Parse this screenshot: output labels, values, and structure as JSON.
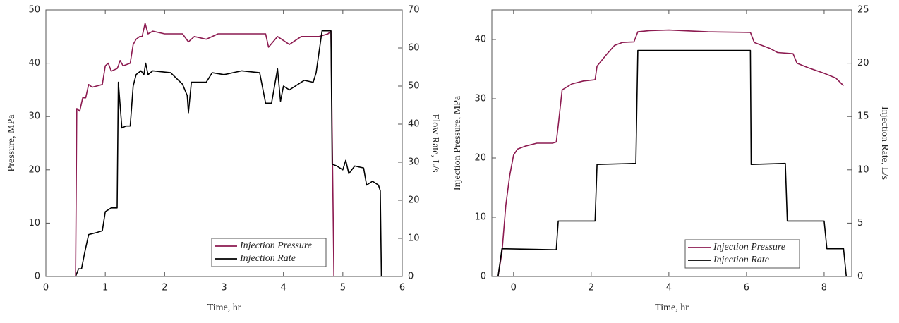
{
  "chart_data": [
    {
      "type": "line",
      "xlabel": "Time, hr",
      "ylabel": "Pressure, MPa",
      "y2label": "Flow Rate, L/s",
      "xlim": [
        0,
        6
      ],
      "xticks": [
        0,
        1,
        2,
        3,
        4,
        5,
        6
      ],
      "ylim": [
        0,
        50
      ],
      "yticks": [
        0,
        10,
        20,
        30,
        40,
        50
      ],
      "y2lim": [
        0,
        70
      ],
      "y2ticks": [
        0,
        10,
        20,
        30,
        40,
        50,
        60,
        70
      ],
      "legend": "lower right",
      "series": [
        {
          "name": "Injection Pressure",
          "color": "#8c1a50",
          "x": [
            0.5,
            0.52,
            0.57,
            0.62,
            0.67,
            0.72,
            0.78,
            0.95,
            1.0,
            1.05,
            1.1,
            1.2,
            1.22,
            1.25,
            1.3,
            1.42,
            1.47,
            1.52,
            1.58,
            1.62,
            1.67,
            1.72,
            1.8,
            2.0,
            2.3,
            2.4,
            2.5,
            2.7,
            2.9,
            3.3,
            3.7,
            3.75,
            3.9,
            4.1,
            4.3,
            4.6,
            4.75,
            4.8,
            4.85
          ],
          "values": [
            0,
            31.5,
            31,
            33.5,
            33.5,
            36,
            35.5,
            36,
            39.5,
            40,
            38.5,
            39,
            39.5,
            40.5,
            39.5,
            40,
            43.5,
            44.5,
            45,
            45,
            47.5,
            45.5,
            46,
            45.5,
            45.5,
            44,
            45,
            44.5,
            45.5,
            45.5,
            45.5,
            43,
            45,
            43.5,
            45,
            45,
            45.5,
            46,
            0
          ]
        },
        {
          "name": "Injection Rate",
          "color": "#000000",
          "axis": "y2",
          "x": [
            0.5,
            0.55,
            0.6,
            0.65,
            0.72,
            0.85,
            0.95,
            1.0,
            1.1,
            1.2,
            1.22,
            1.28,
            1.35,
            1.42,
            1.47,
            1.52,
            1.6,
            1.65,
            1.68,
            1.72,
            1.8,
            2.1,
            2.3,
            2.38,
            2.4,
            2.45,
            2.7,
            2.8,
            3.0,
            3.3,
            3.6,
            3.7,
            3.8,
            3.9,
            3.95,
            4.0,
            4.1,
            4.2,
            4.35,
            4.5,
            4.55,
            4.65,
            4.8,
            4.82,
            4.9,
            5.0,
            5.05,
            5.1,
            5.2,
            5.35,
            5.4,
            5.5,
            5.6,
            5.63,
            5.65
          ],
          "values": [
            0,
            2,
            2,
            6,
            11,
            11.5,
            12,
            17,
            18,
            18,
            51,
            39,
            39.5,
            39.5,
            50,
            53,
            54,
            53,
            56,
            53,
            54,
            53.5,
            50.5,
            47.5,
            43,
            51,
            51,
            53.5,
            53,
            54,
            53.5,
            45.5,
            45.5,
            54.5,
            46,
            50,
            49,
            50,
            51.5,
            51,
            53.5,
            64.5,
            64.5,
            29.5,
            29,
            28,
            30.5,
            27,
            29,
            28.5,
            24,
            25,
            24,
            22.5,
            0
          ]
        }
      ]
    },
    {
      "type": "line",
      "xlabel": "Time, hr",
      "ylabel": "Injection Pressure, MPa",
      "y2label": "Injection Rate, L/s",
      "xlim": [
        -0.56,
        8.71
      ],
      "xticks": [
        0,
        2,
        4,
        6,
        8
      ],
      "ylim": [
        0,
        45
      ],
      "yticks": [
        0,
        10,
        20,
        30,
        40
      ],
      "y2lim": [
        0,
        25
      ],
      "y2ticks": [
        0,
        5,
        10,
        15,
        20,
        25
      ],
      "legend": "lower right",
      "series": [
        {
          "name": "Injection Pressure",
          "color": "#8c1a50",
          "x": [
            -0.4,
            -0.3,
            -0.2,
            -0.1,
            0,
            0.1,
            0.3,
            0.6,
            1.0,
            1.1,
            1.15,
            1.25,
            1.5,
            1.8,
            2.1,
            2.15,
            2.4,
            2.6,
            2.8,
            3.1,
            3.2,
            3.5,
            4,
            5,
            6.1,
            6.2,
            6.6,
            6.8,
            7.2,
            7.3,
            7.6,
            8.0,
            8.3,
            8.5
          ],
          "values": [
            0,
            4,
            12,
            17,
            20.5,
            21.5,
            22,
            22.5,
            22.5,
            22.7,
            25.5,
            31.5,
            32.5,
            33,
            33.2,
            35.5,
            37.5,
            39,
            39.5,
            39.6,
            41.3,
            41.5,
            41.6,
            41.3,
            41.2,
            39.5,
            38.5,
            37.8,
            37.6,
            36,
            35.2,
            34.3,
            33.5,
            32.2
          ]
        },
        {
          "name": "Injection Rate",
          "color": "#000000",
          "axis": "y2",
          "x": [
            -0.4,
            -0.3,
            1.1,
            1.15,
            2.1,
            2.15,
            3.15,
            3.2,
            6.1,
            6.12,
            7.0,
            7.05,
            8.0,
            8.07,
            8.5,
            8.57
          ],
          "values": [
            0,
            2.6,
            2.5,
            5.2,
            5.2,
            10.5,
            10.6,
            21.2,
            21.2,
            10.5,
            10.6,
            5.2,
            5.2,
            2.6,
            2.6,
            0
          ]
        }
      ]
    }
  ]
}
